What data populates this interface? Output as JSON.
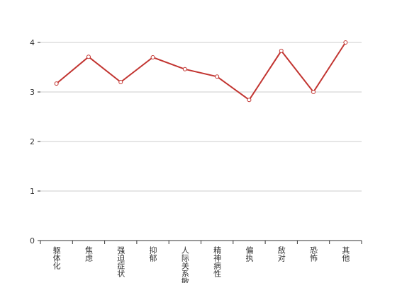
{
  "chart_data": {
    "type": "line",
    "categories": [
      "躯体化",
      "焦虑",
      "强迫症状",
      "抑郁",
      "人际关系敏感",
      "精神病性",
      "偏执",
      "敌对",
      "恐怖",
      "其他"
    ],
    "values": [
      3.17,
      3.71,
      3.2,
      3.7,
      3.46,
      3.31,
      2.84,
      3.83,
      3.0,
      4.0
    ],
    "color": "#c23531",
    "ylim": [
      0,
      4
    ],
    "yticks": [
      0,
      1,
      2,
      3,
      4
    ],
    "grid": true
  }
}
